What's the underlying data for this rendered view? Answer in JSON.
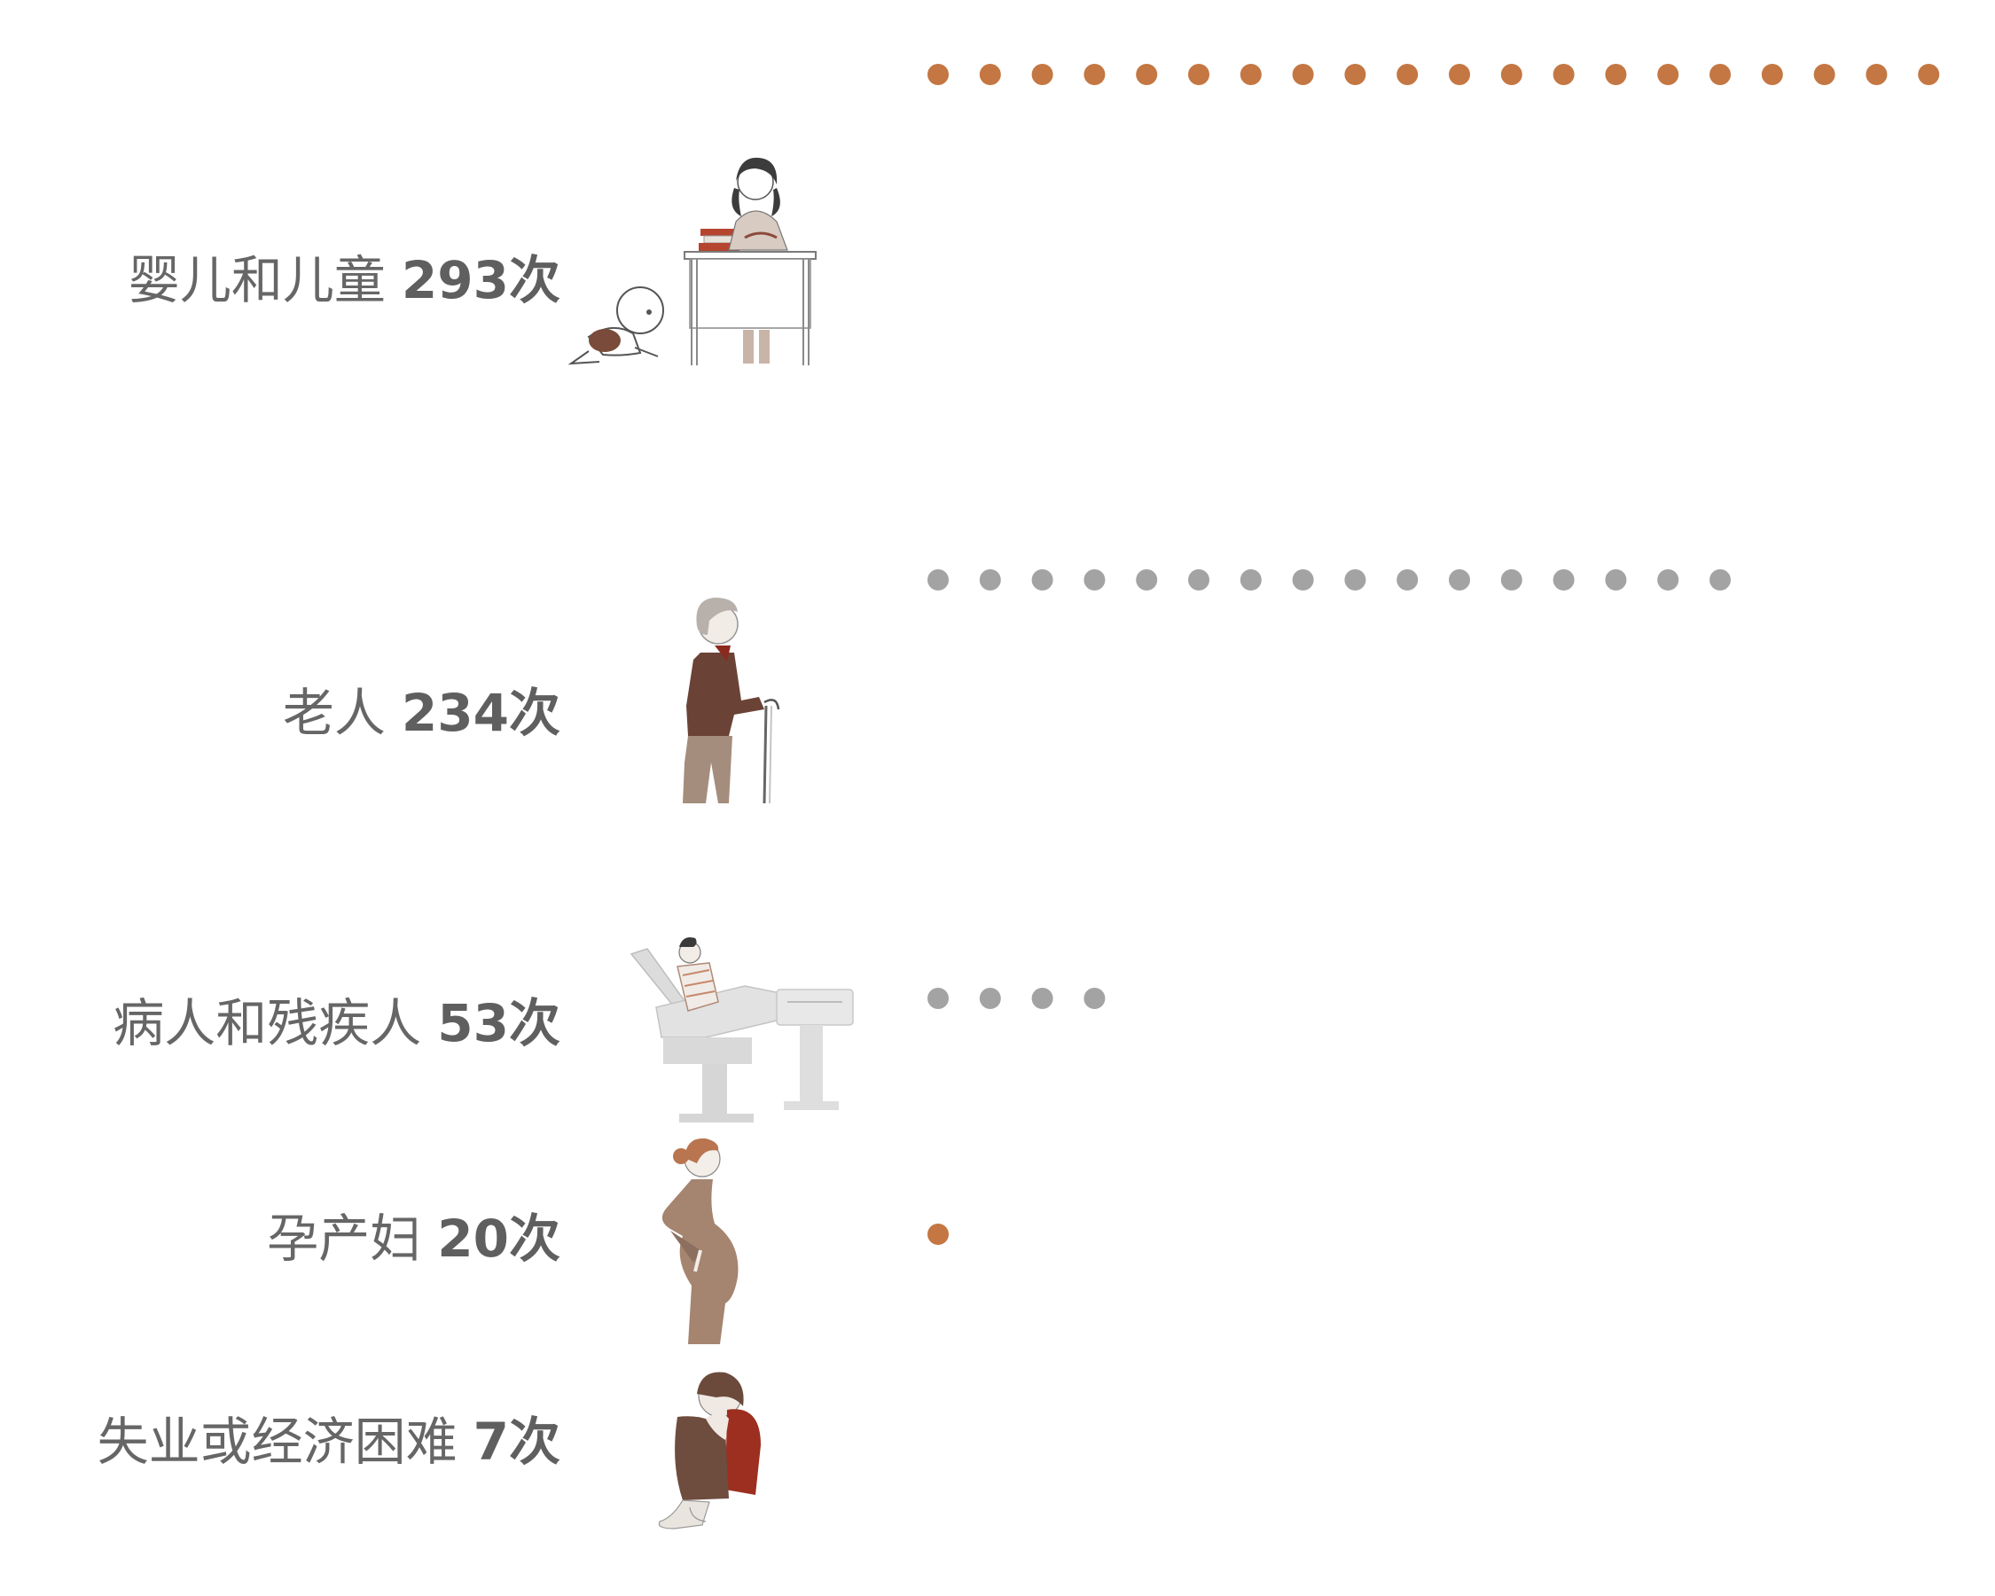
{
  "chart_data": {
    "type": "dot-matrix",
    "title": "",
    "xlabel": "",
    "ylabel": "",
    "legend": "none",
    "grid": false,
    "colors": {
      "highlight": "#c47742",
      "neutral": "#a3a3a3"
    },
    "rows": [
      {
        "category": "婴儿和儿童",
        "value": 293,
        "value_label": "293次",
        "color": "#c47742",
        "icon": "teacher-and-crawling-baby-icon"
      },
      {
        "category": "老人",
        "value": 234,
        "value_label": "234次",
        "color": "#a3a3a3",
        "icon": "elderly-man-with-cane-icon"
      },
      {
        "category": "病人和残疾人",
        "value": 53,
        "value_label": "53次",
        "color": "#a3a3a3",
        "icon": "patient-in-medical-chair-icon"
      },
      {
        "category": "孕产妇",
        "value": 20,
        "value_label": "20次",
        "color": "#c47742",
        "icon": "pregnant-woman-icon"
      },
      {
        "category": "失业或经济困难",
        "value": 7,
        "value_label": "7次",
        "color": "#a3a3a3",
        "icon": "distressed-person-sitting-icon"
      }
    ]
  }
}
